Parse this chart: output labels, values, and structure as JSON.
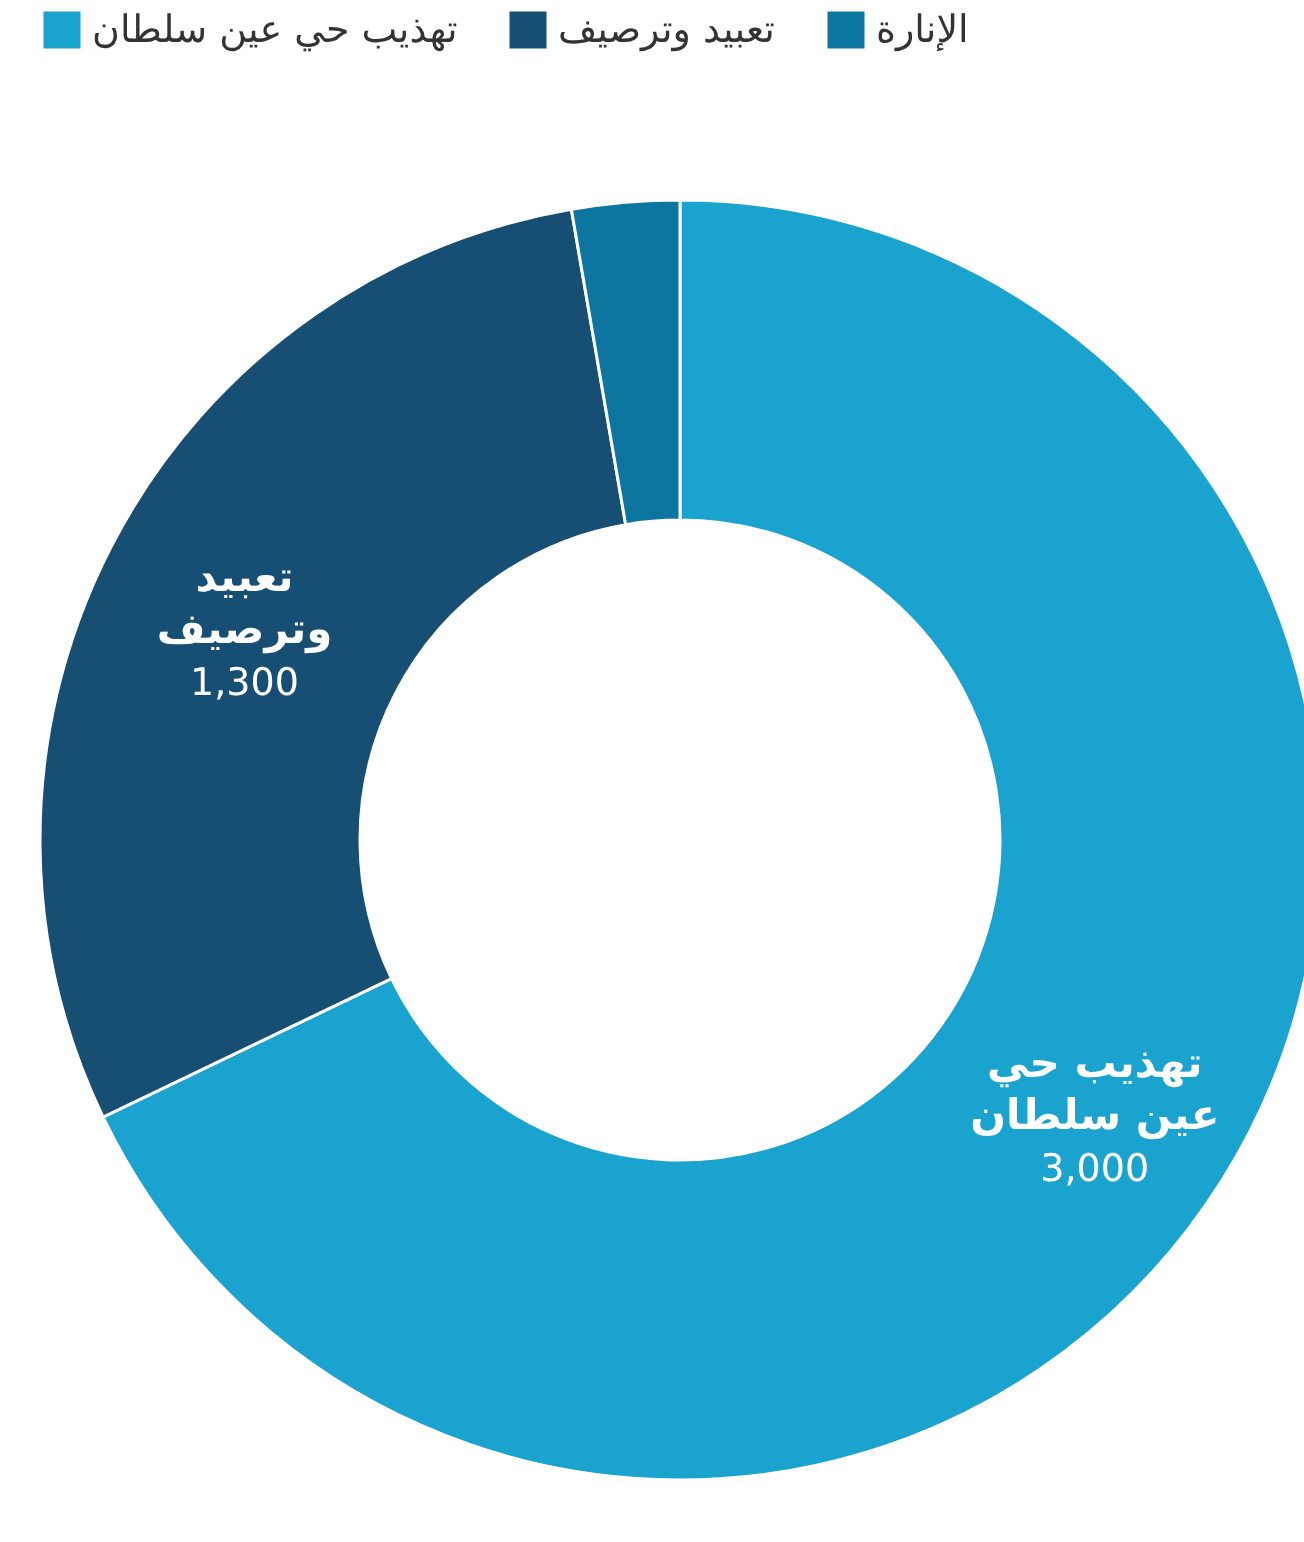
{
  "chart_data": {
    "type": "donut",
    "categories": [
      "تهذيب حي عين سلطان",
      "تعبيد وترصيف",
      "الإنارة"
    ],
    "values": [
      3000,
      1300,
      120
    ],
    "colors": [
      "#1ba3d0",
      "#164e74",
      "#0c76a0"
    ],
    "value_labels": [
      "3,000",
      "1,300",
      null
    ],
    "legend": "top left"
  }
}
